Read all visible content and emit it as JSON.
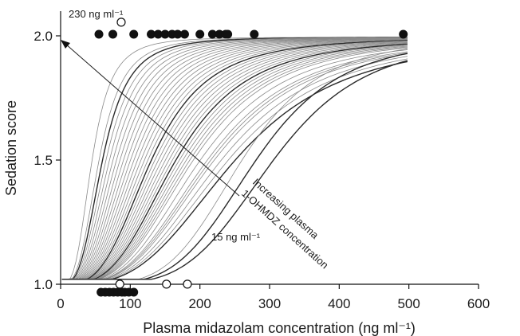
{
  "chart_data": {
    "type": "line",
    "xlabel": "Plasma midazolam concentration (ng ml⁻¹)",
    "ylabel": "Sedation score",
    "xlim": [
      0,
      600
    ],
    "ylim": [
      1.0,
      2.05
    ],
    "x_ticks": [
      "0",
      "100",
      "200",
      "300",
      "400",
      "500",
      "600"
    ],
    "y_ticks": [
      "1.0",
      "1.5",
      "2.0"
    ],
    "colors": {
      "curve": "#8a8a8a",
      "curve_dark": "#2a2a2a",
      "marker": "#111111"
    },
    "curves_ec50": [
      45,
      55,
      60,
      65,
      70,
      75,
      80,
      85,
      90,
      95,
      100,
      105,
      110,
      115,
      120,
      125,
      130,
      135,
      140,
      145,
      150,
      155,
      160,
      165,
      170,
      175,
      180,
      185,
      190,
      200,
      210,
      215,
      220,
      230,
      240,
      250,
      260,
      280,
      305
    ],
    "filled_points": [
      {
        "x": 55,
        "y": 2.0
      },
      {
        "x": 75,
        "y": 2.0
      },
      {
        "x": 105,
        "y": 2.0
      },
      {
        "x": 130,
        "y": 2.0
      },
      {
        "x": 140,
        "y": 2.0
      },
      {
        "x": 150,
        "y": 2.0
      },
      {
        "x": 160,
        "y": 2.0
      },
      {
        "x": 168,
        "y": 2.0
      },
      {
        "x": 178,
        "y": 2.0
      },
      {
        "x": 200,
        "y": 2.0
      },
      {
        "x": 218,
        "y": 2.0
      },
      {
        "x": 228,
        "y": 2.0
      },
      {
        "x": 237,
        "y": 2.0
      },
      {
        "x": 240,
        "y": 2.0
      },
      {
        "x": 278,
        "y": 2.0
      },
      {
        "x": 492,
        "y": 2.0
      },
      {
        "x": 58,
        "y": 1.0
      },
      {
        "x": 64,
        "y": 1.0
      },
      {
        "x": 70,
        "y": 1.0
      },
      {
        "x": 76,
        "y": 1.0
      },
      {
        "x": 82,
        "y": 1.0
      },
      {
        "x": 88,
        "y": 1.0
      },
      {
        "x": 92,
        "y": 1.0
      },
      {
        "x": 98,
        "y": 1.0
      },
      {
        "x": 105,
        "y": 1.0
      }
    ],
    "open_points": [
      {
        "x": 87,
        "y": 2.01
      },
      {
        "x": 85,
        "y": 1.01
      },
      {
        "x": 152,
        "y": 1.01
      },
      {
        "x": 182,
        "y": 1.01
      }
    ],
    "annotations": [
      {
        "text": "230 ng ml⁻¹"
      },
      {
        "text": "15 ng ml⁻¹"
      },
      {
        "text": "Increasing plasma"
      },
      {
        "text": "1-OHMDZ concentration"
      }
    ]
  }
}
